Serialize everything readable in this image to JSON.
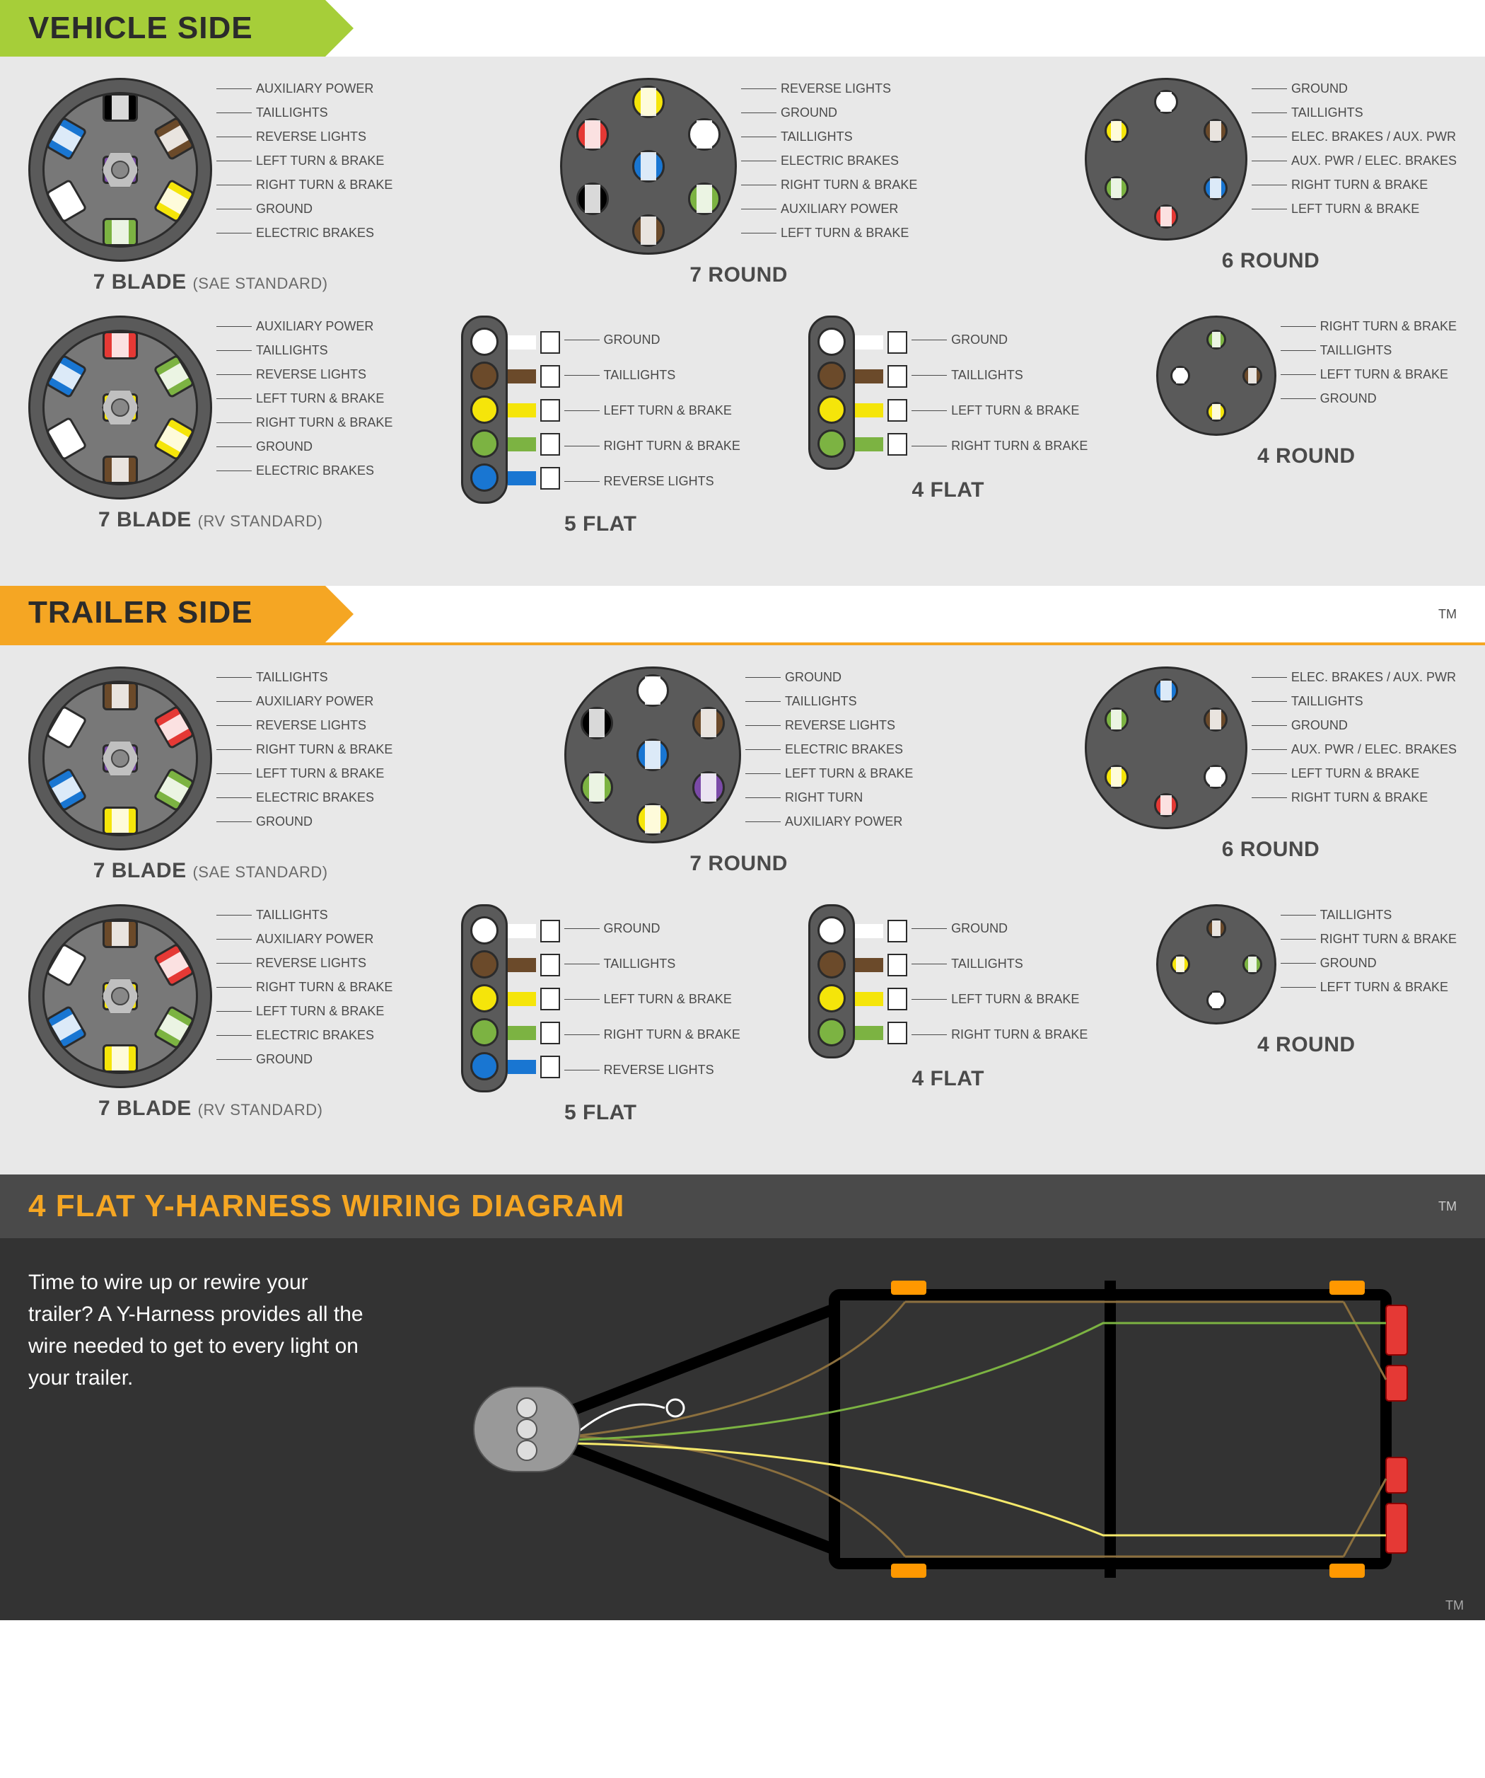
{
  "colors": {
    "vehicle_header": "#a6ce39",
    "trailer_header": "#f5a623",
    "panel_bg": "#e8e8e8",
    "connector_body": "#5a5a5a",
    "connector_inner": "#787878",
    "outline": "#2b2b2b",
    "text": "#4a4a4a",
    "yharness_bg": "#333333",
    "wire_white": "#ffffff",
    "wire_brown": "#6b4a2a",
    "wire_yellow": "#f5e50a",
    "wire_green": "#7cb342",
    "wire_blue": "#1976d2",
    "wire_red": "#e53935",
    "wire_black": "#000000",
    "wire_purple": "#7b4aa8",
    "wire_orange": "#ff9800"
  },
  "fontsizes": {
    "header": 44,
    "title": 30,
    "subtitle": 22,
    "label": 18,
    "body": 30
  },
  "headers": {
    "vehicle": "VEHICLE SIDE",
    "trailer": "TRAILER SIDE",
    "yharness": "4 FLAT Y-HARNESS WIRING DIAGRAM",
    "tm": "TM"
  },
  "yharness_text": "Time to wire up or rewire your trailer? A Y-Harness provides all the wire needed to get to every light on your trailer.",
  "vehicle": {
    "row1": {
      "blade7_sae": {
        "title": "7 BLADE",
        "subtitle": "(SAE STANDARD)",
        "pins": [
          {
            "label": "AUXILIARY POWER",
            "color": "#000000",
            "angle": -60
          },
          {
            "label": "TAILLIGHTS",
            "color": "#6b4a2a",
            "angle": -30
          },
          {
            "label": "REVERSE LIGHTS",
            "color": "#7b4aa8",
            "angle": 0,
            "center": true
          },
          {
            "label": "LEFT TURN & BRAKE",
            "color": "#f5e50a",
            "angle": 20
          },
          {
            "label": "RIGHT TURN & BRAKE",
            "color": "#7cb342",
            "angle": 160
          },
          {
            "label": "GROUND",
            "color": "#ffffff",
            "angle": 230
          },
          {
            "label": "ELECTRIC BRAKES",
            "color": "#1976d2",
            "angle": 200
          }
        ]
      },
      "round7": {
        "title": "7 ROUND",
        "pins": [
          {
            "label": "REVERSE LIGHTS",
            "color": "#f5e50a"
          },
          {
            "label": "GROUND",
            "color": "#ffffff"
          },
          {
            "label": "TAILLIGHTS",
            "color": "#7cb342"
          },
          {
            "label": "ELECTRIC BRAKES",
            "color": "#1976d2"
          },
          {
            "label": "RIGHT TURN & BRAKE",
            "color": "#6b4a2a"
          },
          {
            "label": "AUXILIARY POWER",
            "color": "#000000"
          },
          {
            "label": "LEFT TURN & BRAKE",
            "color": "#e53935"
          }
        ]
      },
      "round6": {
        "title": "6 ROUND",
        "pins": [
          {
            "label": "GROUND",
            "color": "#ffffff"
          },
          {
            "label": "TAILLIGHTS",
            "color": "#6b4a2a"
          },
          {
            "label": "ELEC. BRAKES / AUX. PWR",
            "color": "#1976d2"
          },
          {
            "label": "AUX. PWR / ELEC. BRAKES",
            "color": "#e53935"
          },
          {
            "label": "RIGHT TURN & BRAKE",
            "color": "#7cb342"
          },
          {
            "label": "LEFT TURN & BRAKE",
            "color": "#f5e50a"
          }
        ]
      }
    },
    "row2": {
      "blade7_rv": {
        "title": "7 BLADE",
        "subtitle": "(RV STANDARD)",
        "pins": [
          {
            "label": "AUXILIARY POWER",
            "color": "#e53935"
          },
          {
            "label": "TAILLIGHTS",
            "color": "#7cb342"
          },
          {
            "label": "REVERSE LIGHTS",
            "color": "#f5e50a",
            "center": true
          },
          {
            "label": "LEFT TURN & BRAKE",
            "color": "#f5e50a"
          },
          {
            "label": "RIGHT TURN & BRAKE",
            "color": "#6b4a2a"
          },
          {
            "label": "GROUND",
            "color": "#ffffff"
          },
          {
            "label": "ELECTRIC BRAKES",
            "color": "#1976d2"
          }
        ]
      },
      "flat5": {
        "title": "5 FLAT",
        "pins": [
          {
            "label": "GROUND",
            "color": "#ffffff"
          },
          {
            "label": "TAILLIGHTS",
            "color": "#6b4a2a"
          },
          {
            "label": "LEFT TURN & BRAKE",
            "color": "#f5e50a"
          },
          {
            "label": "RIGHT TURN & BRAKE",
            "color": "#7cb342"
          },
          {
            "label": "REVERSE LIGHTS",
            "color": "#1976d2"
          }
        ]
      },
      "flat4": {
        "title": "4 FLAT",
        "pins": [
          {
            "label": "GROUND",
            "color": "#ffffff"
          },
          {
            "label": "TAILLIGHTS",
            "color": "#6b4a2a"
          },
          {
            "label": "LEFT TURN & BRAKE",
            "color": "#f5e50a"
          },
          {
            "label": "RIGHT TURN & BRAKE",
            "color": "#7cb342"
          }
        ]
      },
      "round4": {
        "title": "4 ROUND",
        "pins": [
          {
            "label": "RIGHT TURN & BRAKE",
            "color": "#7cb342"
          },
          {
            "label": "TAILLIGHTS",
            "color": "#6b4a2a"
          },
          {
            "label": "LEFT TURN & BRAKE",
            "color": "#f5e50a"
          },
          {
            "label": "GROUND",
            "color": "#ffffff"
          }
        ]
      }
    }
  },
  "trailer": {
    "row1": {
      "blade7_sae": {
        "title": "7 BLADE",
        "subtitle": "(SAE STANDARD)",
        "pins": [
          {
            "label": "TAILLIGHTS",
            "color": "#6b4a2a"
          },
          {
            "label": "AUXILIARY POWER",
            "color": "#e53935"
          },
          {
            "label": "REVERSE LIGHTS",
            "color": "#7b4aa8",
            "center": true
          },
          {
            "label": "RIGHT TURN & BRAKE",
            "color": "#7cb342"
          },
          {
            "label": "LEFT TURN & BRAKE",
            "color": "#f5e50a"
          },
          {
            "label": "ELECTRIC BRAKES",
            "color": "#1976d2"
          },
          {
            "label": "GROUND",
            "color": "#ffffff"
          }
        ]
      },
      "round7": {
        "title": "7 ROUND",
        "pins": [
          {
            "label": "GROUND",
            "color": "#ffffff"
          },
          {
            "label": "TAILLIGHTS",
            "color": "#6b4a2a"
          },
          {
            "label": "REVERSE LIGHTS",
            "color": "#7b4aa8"
          },
          {
            "label": "ELECTRIC BRAKES",
            "color": "#1976d2"
          },
          {
            "label": "LEFT TURN & BRAKE",
            "color": "#f5e50a"
          },
          {
            "label": "RIGHT TURN",
            "color": "#7cb342"
          },
          {
            "label": "AUXILIARY POWER",
            "color": "#000000"
          }
        ]
      },
      "round6": {
        "title": "6 ROUND",
        "pins": [
          {
            "label": "ELEC. BRAKES / AUX. PWR",
            "color": "#1976d2"
          },
          {
            "label": "TAILLIGHTS",
            "color": "#6b4a2a"
          },
          {
            "label": "GROUND",
            "color": "#ffffff"
          },
          {
            "label": "AUX. PWR / ELEC. BRAKES",
            "color": "#e53935"
          },
          {
            "label": "LEFT TURN & BRAKE",
            "color": "#f5e50a"
          },
          {
            "label": "RIGHT TURN & BRAKE",
            "color": "#7cb342"
          }
        ]
      }
    },
    "row2": {
      "blade7_rv": {
        "title": "7 BLADE",
        "subtitle": "(RV STANDARD)",
        "pins": [
          {
            "label": "TAILLIGHTS",
            "color": "#6b4a2a"
          },
          {
            "label": "AUXILIARY POWER",
            "color": "#e53935"
          },
          {
            "label": "REVERSE LIGHTS",
            "color": "#f5e50a",
            "center": true
          },
          {
            "label": "RIGHT TURN & BRAKE",
            "color": "#7cb342"
          },
          {
            "label": "LEFT TURN & BRAKE",
            "color": "#f5e50a"
          },
          {
            "label": "ELECTRIC BRAKES",
            "color": "#1976d2"
          },
          {
            "label": "GROUND",
            "color": "#ffffff"
          }
        ]
      },
      "flat5": {
        "title": "5 FLAT",
        "pins": [
          {
            "label": "GROUND",
            "color": "#ffffff"
          },
          {
            "label": "TAILLIGHTS",
            "color": "#6b4a2a"
          },
          {
            "label": "LEFT TURN & BRAKE",
            "color": "#f5e50a"
          },
          {
            "label": "RIGHT TURN & BRAKE",
            "color": "#7cb342"
          },
          {
            "label": "REVERSE LIGHTS",
            "color": "#1976d2"
          }
        ]
      },
      "flat4": {
        "title": "4 FLAT",
        "pins": [
          {
            "label": "GROUND",
            "color": "#ffffff"
          },
          {
            "label": "TAILLIGHTS",
            "color": "#6b4a2a"
          },
          {
            "label": "LEFT TURN & BRAKE",
            "color": "#f5e50a"
          },
          {
            "label": "RIGHT TURN & BRAKE",
            "color": "#7cb342"
          }
        ]
      },
      "round4": {
        "title": "4 ROUND",
        "pins": [
          {
            "label": "TAILLIGHTS",
            "color": "#6b4a2a"
          },
          {
            "label": "RIGHT TURN & BRAKE",
            "color": "#7cb342"
          },
          {
            "label": "GROUND",
            "color": "#ffffff"
          },
          {
            "label": "LEFT TURN & BRAKE",
            "color": "#f5e50a"
          }
        ]
      }
    }
  }
}
